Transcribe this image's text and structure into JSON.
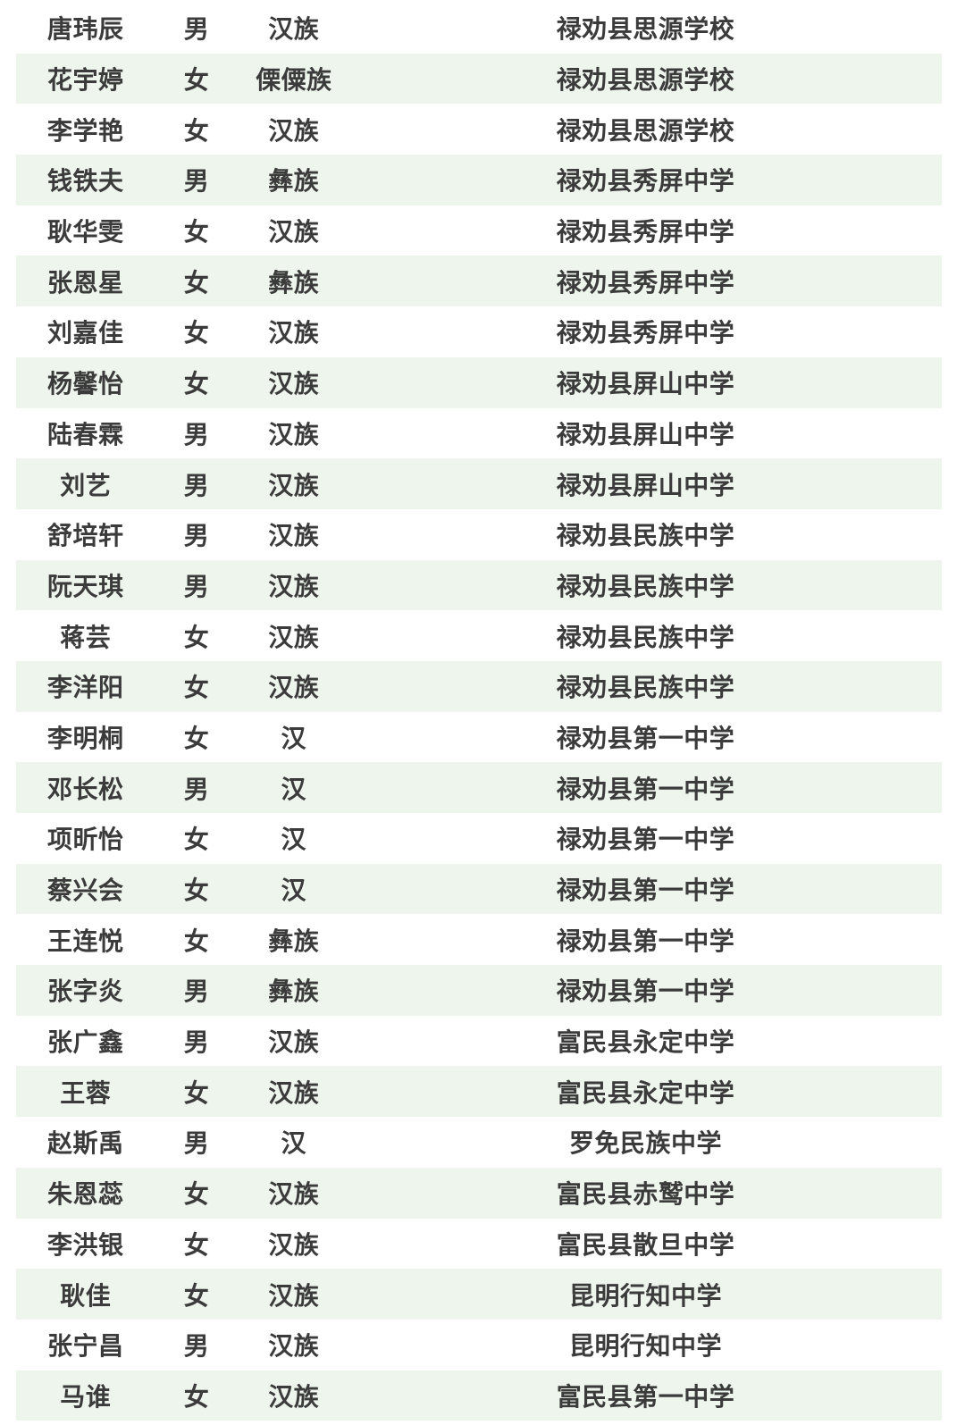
{
  "colors": {
    "row_bg": "#ffffff",
    "row_alt_bg": "#edf5ec",
    "text": "#3b3b3b"
  },
  "table": {
    "fields": [
      "name",
      "gender",
      "ethnicity",
      "school"
    ],
    "rows": [
      {
        "name": "唐玮辰",
        "gender": "男",
        "ethnicity": "汉族",
        "school": "禄劝县思源学校"
      },
      {
        "name": "花宇婷",
        "gender": "女",
        "ethnicity": "傈僳族",
        "school": "禄劝县思源学校"
      },
      {
        "name": "李学艳",
        "gender": "女",
        "ethnicity": "汉族",
        "school": "禄劝县思源学校"
      },
      {
        "name": "钱铁夫",
        "gender": "男",
        "ethnicity": "彝族",
        "school": "禄劝县秀屏中学"
      },
      {
        "name": "耿华雯",
        "gender": "女",
        "ethnicity": "汉族",
        "school": "禄劝县秀屏中学"
      },
      {
        "name": "张恩星",
        "gender": "女",
        "ethnicity": "彝族",
        "school": "禄劝县秀屏中学"
      },
      {
        "name": "刘嘉佳",
        "gender": "女",
        "ethnicity": "汉族",
        "school": "禄劝县秀屏中学"
      },
      {
        "name": "杨馨怡",
        "gender": "女",
        "ethnicity": "汉族",
        "school": "禄劝县屏山中学"
      },
      {
        "name": "陆春霖",
        "gender": "男",
        "ethnicity": "汉族",
        "school": "禄劝县屏山中学"
      },
      {
        "name": "刘艺",
        "gender": "男",
        "ethnicity": "汉族",
        "school": "禄劝县屏山中学"
      },
      {
        "name": "舒培轩",
        "gender": "男",
        "ethnicity": "汉族",
        "school": "禄劝县民族中学"
      },
      {
        "name": "阮天琪",
        "gender": "男",
        "ethnicity": "汉族",
        "school": "禄劝县民族中学"
      },
      {
        "name": "蒋芸",
        "gender": "女",
        "ethnicity": "汉族",
        "school": "禄劝县民族中学"
      },
      {
        "name": "李洋阳",
        "gender": "女",
        "ethnicity": "汉族",
        "school": "禄劝县民族中学"
      },
      {
        "name": "李明桐",
        "gender": "女",
        "ethnicity": "汉",
        "school": "禄劝县第一中学"
      },
      {
        "name": "邓长松",
        "gender": "男",
        "ethnicity": "汉",
        "school": "禄劝县第一中学"
      },
      {
        "name": "项昕怡",
        "gender": "女",
        "ethnicity": "汉",
        "school": "禄劝县第一中学"
      },
      {
        "name": "蔡兴会",
        "gender": "女",
        "ethnicity": "汉",
        "school": "禄劝县第一中学"
      },
      {
        "name": "王连悦",
        "gender": "女",
        "ethnicity": "彝族",
        "school": "禄劝县第一中学"
      },
      {
        "name": "张字炎",
        "gender": "男",
        "ethnicity": "彝族",
        "school": "禄劝县第一中学"
      },
      {
        "name": "张广鑫",
        "gender": "男",
        "ethnicity": "汉族",
        "school": "富民县永定中学"
      },
      {
        "name": "王蓉",
        "gender": "女",
        "ethnicity": "汉族",
        "school": "富民县永定中学"
      },
      {
        "name": "赵斯禹",
        "gender": "男",
        "ethnicity": "汉",
        "school": "罗免民族中学"
      },
      {
        "name": "朱恩蕊",
        "gender": "女",
        "ethnicity": "汉族",
        "school": "富民县赤鹫中学"
      },
      {
        "name": "李洪银",
        "gender": "女",
        "ethnicity": "汉族",
        "school": "富民县散旦中学"
      },
      {
        "name": "耿佳",
        "gender": "女",
        "ethnicity": "汉族",
        "school": "昆明行知中学"
      },
      {
        "name": "张宁昌",
        "gender": "男",
        "ethnicity": "汉族",
        "school": "昆明行知中学"
      },
      {
        "name": "马谁",
        "gender": "女",
        "ethnicity": "汉族",
        "school": "富民县第一中学"
      }
    ]
  }
}
